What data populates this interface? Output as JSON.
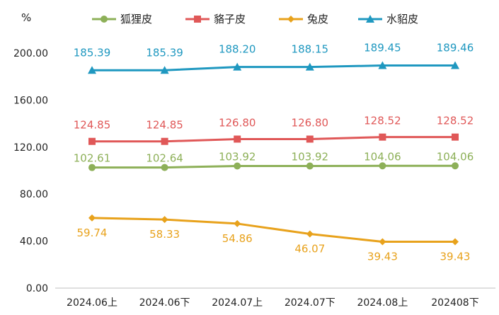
{
  "chart_data": {
    "type": "line",
    "ylabel": "%",
    "ylim": [
      0,
      200
    ],
    "yticks": [
      "0.00",
      "40.00",
      "80.00",
      "120.00",
      "160.00",
      "200.00"
    ],
    "categories": [
      "2024.06上",
      "2024.06下",
      "2024.07上",
      "2024.07下",
      "2024.08上",
      "202408下"
    ],
    "legend_position": "top",
    "grid": false,
    "series": [
      {
        "name": "狐狸皮",
        "color": "#8db058",
        "marker": "circle",
        "values": [
          102.61,
          102.64,
          103.92,
          103.92,
          104.06,
          104.06
        ],
        "labels": [
          "102.61",
          "102.64",
          "103.92",
          "103.92",
          "104.06",
          "104.06"
        ]
      },
      {
        "name": "貉子皮",
        "color": "#e05858",
        "marker": "square",
        "values": [
          124.85,
          124.85,
          126.8,
          126.8,
          128.52,
          128.52
        ],
        "labels": [
          "124.85",
          "124.85",
          "126.80",
          "126.80",
          "128.52",
          "128.52"
        ]
      },
      {
        "name": "兔皮",
        "color": "#e8a21c",
        "marker": "diamond",
        "values": [
          59.74,
          58.33,
          54.86,
          46.07,
          39.43,
          39.43
        ],
        "labels": [
          "59.74",
          "58.33",
          "54.86",
          "46.07",
          "39.43",
          "39.43"
        ]
      },
      {
        "name": "水貂皮",
        "color": "#1f98c0",
        "marker": "triangle",
        "values": [
          185.39,
          185.39,
          188.2,
          188.15,
          189.45,
          189.46
        ],
        "labels": [
          "185.39",
          "185.39",
          "188.20",
          "188.15",
          "189.45",
          "189.46"
        ]
      }
    ]
  }
}
